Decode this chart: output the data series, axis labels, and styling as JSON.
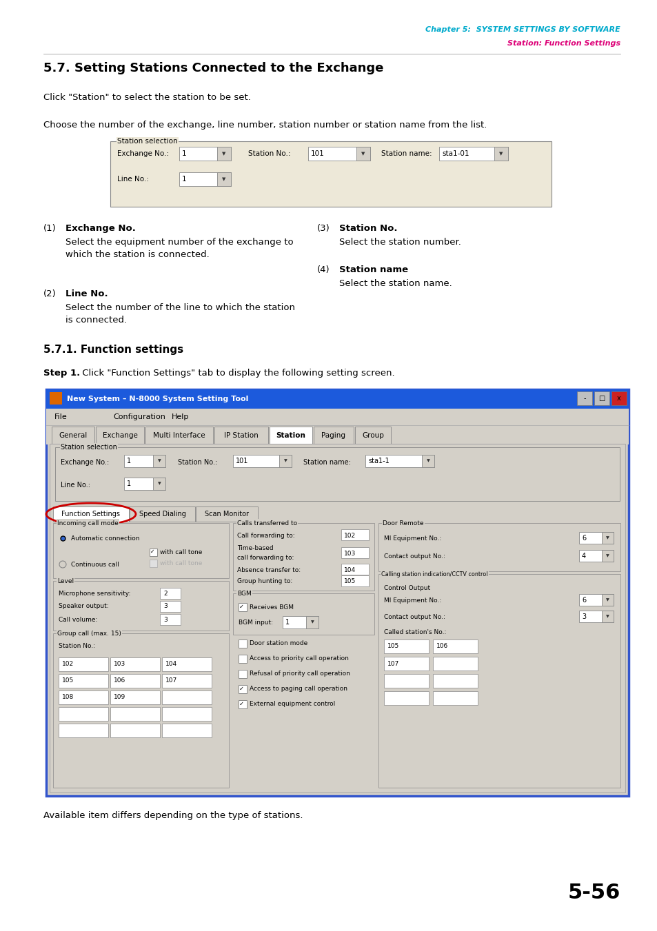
{
  "page_width": 9.54,
  "page_height": 13.51,
  "bg_color": "#ffffff",
  "header_line1": "Chapter 5:  SYSTEM SETTINGS BY SOFTWARE",
  "header_line2": "Station: Function Settings",
  "header_color1": "#00aacc",
  "header_color2": "#dd0077",
  "section_title": "5.7. Setting Stations Connected to the Exchange",
  "para1": "Click \"Station\" to select the station to be set.",
  "para2": "Choose the number of the exchange, line number, station number or station name from the list.",
  "station_selection_label": "Station selection",
  "exchange_no_label": "Exchange No.:",
  "exchange_no_val": "1",
  "station_no_label": "Station No.:",
  "station_no_val": "101",
  "station_name_label": "Station name:",
  "station_name_val": "sta1-01",
  "line_no_label": "Line No.:",
  "line_no_val": "1",
  "items": [
    {
      "num": "(1)",
      "bold": "Exchange No.",
      "text1": "Select the equipment number of the exchange to",
      "text2": "which the station is connected."
    },
    {
      "num": "(2)",
      "bold": "Line No.",
      "text1": "Select the number of the line to which the station",
      "text2": "is connected."
    },
    {
      "num": "(3)",
      "bold": "Station No.",
      "text1": "Select the station number.",
      "text2": ""
    },
    {
      "num": "(4)",
      "bold": "Station name",
      "text1": "Select the station name.",
      "text2": ""
    }
  ],
  "subsection_title": "5.7.1. Function settings",
  "step1_bold": "Step 1.",
  "step1_text": " Click \"Function Settings\" tab to display the following setting screen.",
  "window_title": "New System – N-8000 System Setting Tool",
  "menu_items": [
    "File",
    "Configuration",
    "Help"
  ],
  "tabs": [
    "General",
    "Exchange",
    "Multi Interface",
    "IP Station",
    "Station",
    "Paging",
    "Group"
  ],
  "active_tab": "Station",
  "function_tabs": [
    "Function Settings",
    "Speed Dialing",
    "Scan Monitor"
  ],
  "active_function_tab": "Function Settings",
  "note_text": "Available item differs depending on the type of stations.",
  "page_num": "5-56",
  "win_bg": "#d4d0c8",
  "win_title_bg": "#1c5adc",
  "win_title_fg": "#ffffff"
}
